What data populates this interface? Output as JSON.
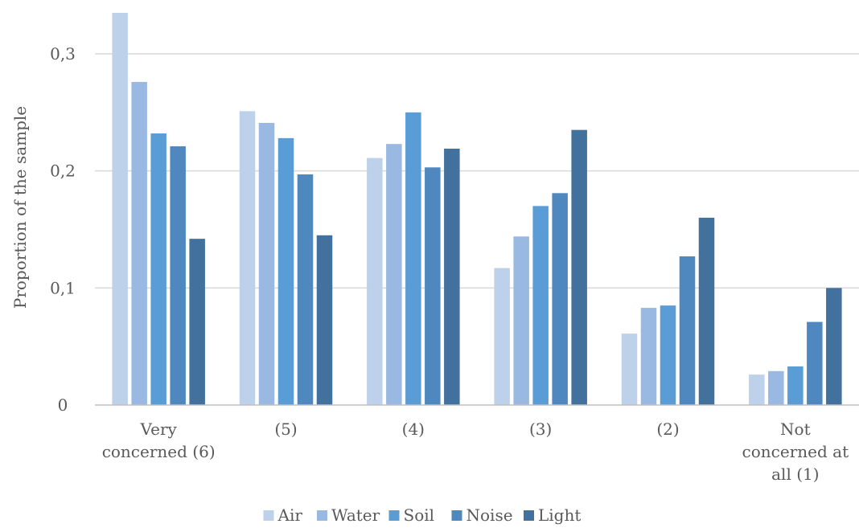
{
  "chart_data": {
    "type": "bar",
    "title": "",
    "xlabel": "",
    "ylabel": "Proportion of the sample",
    "ylim": [
      0,
      0.335
    ],
    "yticks": [
      {
        "value": 0,
        "label": "0"
      },
      {
        "value": 0.1,
        "label": "0,1"
      },
      {
        "value": 0.2,
        "label": "0,2"
      },
      {
        "value": 0.3,
        "label": "0,3"
      }
    ],
    "grid": true,
    "legend_position": "bottom",
    "categories": [
      {
        "label": "Very concerned (6)",
        "lines": [
          "Very",
          "concerned (6)"
        ]
      },
      {
        "label": "(5)",
        "lines": [
          "(5)"
        ]
      },
      {
        "label": "(4)",
        "lines": [
          "(4)"
        ]
      },
      {
        "label": "(3)",
        "lines": [
          "(3)"
        ]
      },
      {
        "label": "(2)",
        "lines": [
          "(2)"
        ]
      },
      {
        "label": "Not concerned at all (1)",
        "lines": [
          "Not",
          "concerned at",
          "all (1)"
        ]
      }
    ],
    "series": [
      {
        "name": "Air",
        "color": "#bdd1ea",
        "values": [
          0.335,
          0.251,
          0.211,
          0.117,
          0.061,
          0.026
        ]
      },
      {
        "name": "Water",
        "color": "#9ab9e2",
        "values": [
          0.276,
          0.241,
          0.223,
          0.144,
          0.083,
          0.029
        ]
      },
      {
        "name": "Soil",
        "color": "#5a9cd6",
        "values": [
          0.232,
          0.228,
          0.25,
          0.17,
          0.085,
          0.033
        ]
      },
      {
        "name": "Noise",
        "color": "#4e88bf",
        "values": [
          0.221,
          0.197,
          0.203,
          0.181,
          0.127,
          0.071
        ]
      },
      {
        "name": "Light",
        "color": "#41719c",
        "values": [
          0.142,
          0.145,
          0.219,
          0.235,
          0.16,
          0.1
        ]
      }
    ]
  }
}
